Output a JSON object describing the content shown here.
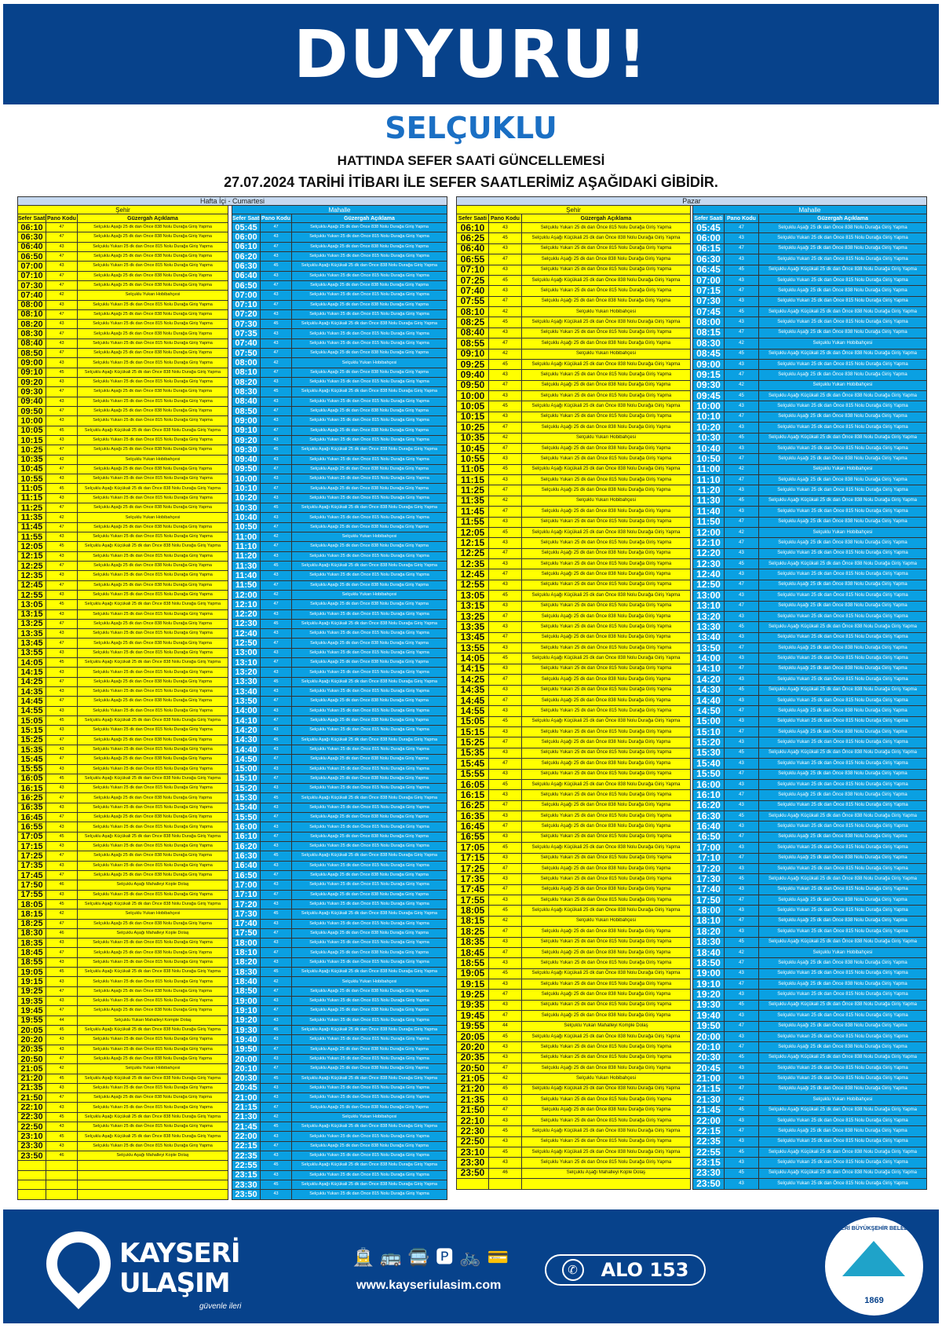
{
  "header": {
    "title": "DUYURU!",
    "line": "SELÇUKLU",
    "subtitle": "HATTINDA SEFER SAATİ GÜNCELLEMESİ",
    "notice": "27.07.2024 TARİHİ İTİBARI İLE SEFER SAATLERİMİZ AŞAĞIDAKİ GİBİDİR."
  },
  "colors": {
    "banner": "#07428b",
    "line_title": "#1a6fc4",
    "sehir": "#ffff00",
    "mahalle": "#0aa0e2",
    "band": "#c6d9f0"
  },
  "columns": {
    "time": "Sefer Saati",
    "code": "Pano Kodu",
    "desc": "Güzergah Açıklama"
  },
  "sections": {
    "sehir": "Şehir",
    "mahalle": "Mahalle"
  },
  "routes": {
    "42": "Selçuklu Yukarı Hobibahçesi",
    "43": "Selçuklu Yukarı 25 dk dan Önce 815 Nolu Durağa Giriş Yapma",
    "44": "Selçuklu Yukarı Mahalleyi Komple Dolaş",
    "45": "Selçuklu Aşağı Küçükali 25 dk dan Önce 838 Nolu Durağa Giriş Yapma",
    "46": "Selçuklu Aşağı  Mahalleyi Kople Dolaş",
    "47": "Selçuklu Aşağı 25 dk dan Önce 838 Nolu Durağa Giriş Yapma"
  },
  "weekday": {
    "title": "Hafta İçi - Cumartesi",
    "sehir": [
      [
        "06:10",
        "47"
      ],
      [
        "06:30",
        "47"
      ],
      [
        "06:40",
        "43"
      ],
      [
        "06:50",
        "47"
      ],
      [
        "07:00",
        "43"
      ],
      [
        "07:10",
        "47"
      ],
      [
        "07:30",
        "47"
      ],
      [
        "07:40",
        "42"
      ],
      [
        "08:00",
        "43"
      ],
      [
        "08:10",
        "47"
      ],
      [
        "08:20",
        "43"
      ],
      [
        "08:30",
        "47"
      ],
      [
        "08:40",
        "43"
      ],
      [
        "08:50",
        "47"
      ],
      [
        "09:00",
        "43"
      ],
      [
        "09:10",
        "45"
      ],
      [
        "09:20",
        "43"
      ],
      [
        "09:30",
        "47"
      ],
      [
        "09:40",
        "43"
      ],
      [
        "09:50",
        "47"
      ],
      [
        "10:00",
        "43"
      ],
      [
        "10:05",
        "45"
      ],
      [
        "10:15",
        "43"
      ],
      [
        "10:25",
        "47"
      ],
      [
        "10:35",
        "42"
      ],
      [
        "10:45",
        "47"
      ],
      [
        "10:55",
        "43"
      ],
      [
        "11:05",
        "45"
      ],
      [
        "11:15",
        "43"
      ],
      [
        "11:25",
        "47"
      ],
      [
        "11:35",
        "42"
      ],
      [
        "11:45",
        "47"
      ],
      [
        "11:55",
        "43"
      ],
      [
        "12:05",
        "45"
      ],
      [
        "12:15",
        "43"
      ],
      [
        "12:25",
        "47"
      ],
      [
        "12:35",
        "43"
      ],
      [
        "12:45",
        "47"
      ],
      [
        "12:55",
        "43"
      ],
      [
        "13:05",
        "45"
      ],
      [
        "13:15",
        "43"
      ],
      [
        "13:25",
        "47"
      ],
      [
        "13:35",
        "43"
      ],
      [
        "13:45",
        "47"
      ],
      [
        "13:55",
        "43"
      ],
      [
        "14:05",
        "45"
      ],
      [
        "14:15",
        "43"
      ],
      [
        "14:25",
        "47"
      ],
      [
        "14:35",
        "43"
      ],
      [
        "14:45",
        "47"
      ],
      [
        "14:55",
        "43"
      ],
      [
        "15:05",
        "45"
      ],
      [
        "15:15",
        "43"
      ],
      [
        "15:25",
        "47"
      ],
      [
        "15:35",
        "43"
      ],
      [
        "15:45",
        "47"
      ],
      [
        "15:55",
        "43"
      ],
      [
        "16:05",
        "45"
      ],
      [
        "16:15",
        "43"
      ],
      [
        "16:25",
        "47"
      ],
      [
        "16:35",
        "43"
      ],
      [
        "16:45",
        "47"
      ],
      [
        "16:55",
        "43"
      ],
      [
        "17:05",
        "45"
      ],
      [
        "17:15",
        "43"
      ],
      [
        "17:25",
        "47"
      ],
      [
        "17:35",
        "43"
      ],
      [
        "17:45",
        "47"
      ],
      [
        "17:50",
        "46"
      ],
      [
        "17:55",
        "43"
      ],
      [
        "18:05",
        "45"
      ],
      [
        "18:15",
        "42"
      ],
      [
        "18:25",
        "47"
      ],
      [
        "18:30",
        "46"
      ],
      [
        "18:35",
        "43"
      ],
      [
        "18:45",
        "47"
      ],
      [
        "18:55",
        "43"
      ],
      [
        "19:05",
        "45"
      ],
      [
        "19:15",
        "43"
      ],
      [
        "19:25",
        "47"
      ],
      [
        "19:35",
        "43"
      ],
      [
        "19:45",
        "47"
      ],
      [
        "19:55",
        "44"
      ],
      [
        "20:05",
        "45"
      ],
      [
        "20:20",
        "43"
      ],
      [
        "20:35",
        "43"
      ],
      [
        "20:50",
        "47"
      ],
      [
        "21:05",
        "42"
      ],
      [
        "21:20",
        "45"
      ],
      [
        "21:35",
        "43"
      ],
      [
        "21:50",
        "47"
      ],
      [
        "22:10",
        "43"
      ],
      [
        "22:30",
        "45"
      ],
      [
        "22:50",
        "43"
      ],
      [
        "23:10",
        "45"
      ],
      [
        "23:30",
        "43"
      ],
      [
        "23:50",
        "46"
      ]
    ],
    "mahalle": [
      [
        "05:45",
        "47"
      ],
      [
        "06:00",
        "43"
      ],
      [
        "06:10",
        "47"
      ],
      [
        "06:20",
        "43"
      ],
      [
        "06:30",
        "45"
      ],
      [
        "06:40",
        "43"
      ],
      [
        "06:50",
        "47"
      ],
      [
        "07:00",
        "43"
      ],
      [
        "07:10",
        "47"
      ],
      [
        "07:20",
        "43"
      ],
      [
        "07:30",
        "45"
      ],
      [
        "07:35",
        "43"
      ],
      [
        "07:40",
        "43"
      ],
      [
        "07:50",
        "47"
      ],
      [
        "08:00",
        "42"
      ],
      [
        "08:10",
        "47"
      ],
      [
        "08:20",
        "43"
      ],
      [
        "08:30",
        "45"
      ],
      [
        "08:40",
        "43"
      ],
      [
        "08:50",
        "47"
      ],
      [
        "09:00",
        "43"
      ],
      [
        "09:10",
        "47"
      ],
      [
        "09:20",
        "43"
      ],
      [
        "09:30",
        "45"
      ],
      [
        "09:40",
        "43"
      ],
      [
        "09:50",
        "47"
      ],
      [
        "10:00",
        "43"
      ],
      [
        "10:10",
        "47"
      ],
      [
        "10:20",
        "43"
      ],
      [
        "10:30",
        "45"
      ],
      [
        "10:40",
        "43"
      ],
      [
        "10:50",
        "47"
      ],
      [
        "11:00",
        "42"
      ],
      [
        "11:10",
        "47"
      ],
      [
        "11:20",
        "43"
      ],
      [
        "11:30",
        "45"
      ],
      [
        "11:40",
        "43"
      ],
      [
        "11:50",
        "47"
      ],
      [
        "12:00",
        "42"
      ],
      [
        "12:10",
        "47"
      ],
      [
        "12:20",
        "43"
      ],
      [
        "12:30",
        "45"
      ],
      [
        "12:40",
        "43"
      ],
      [
        "12:50",
        "47"
      ],
      [
        "13:00",
        "43"
      ],
      [
        "13:10",
        "47"
      ],
      [
        "13:20",
        "43"
      ],
      [
        "13:30",
        "45"
      ],
      [
        "13:40",
        "43"
      ],
      [
        "13:50",
        "47"
      ],
      [
        "14:00",
        "43"
      ],
      [
        "14:10",
        "47"
      ],
      [
        "14:20",
        "43"
      ],
      [
        "14:30",
        "45"
      ],
      [
        "14:40",
        "43"
      ],
      [
        "14:50",
        "47"
      ],
      [
        "15:00",
        "43"
      ],
      [
        "15:10",
        "47"
      ],
      [
        "15:20",
        "43"
      ],
      [
        "15:30",
        "45"
      ],
      [
        "15:40",
        "43"
      ],
      [
        "15:50",
        "47"
      ],
      [
        "16:00",
        "43"
      ],
      [
        "16:10",
        "47"
      ],
      [
        "16:20",
        "43"
      ],
      [
        "16:30",
        "45"
      ],
      [
        "16:40",
        "43"
      ],
      [
        "16:50",
        "47"
      ],
      [
        "17:00",
        "43"
      ],
      [
        "17:10",
        "47"
      ],
      [
        "17:20",
        "43"
      ],
      [
        "17:30",
        "45"
      ],
      [
        "17:40",
        "43"
      ],
      [
        "17:50",
        "47"
      ],
      [
        "18:00",
        "43"
      ],
      [
        "18:10",
        "47"
      ],
      [
        "18:20",
        "43"
      ],
      [
        "18:30",
        "45"
      ],
      [
        "18:40",
        "42"
      ],
      [
        "18:50",
        "47"
      ],
      [
        "19:00",
        "43"
      ],
      [
        "19:10",
        "47"
      ],
      [
        "19:20",
        "43"
      ],
      [
        "19:30",
        "45"
      ],
      [
        "19:40",
        "43"
      ],
      [
        "19:50",
        "47"
      ],
      [
        "20:00",
        "43"
      ],
      [
        "20:10",
        "47"
      ],
      [
        "20:30",
        "45"
      ],
      [
        "20:45",
        "43"
      ],
      [
        "21:00",
        "43"
      ],
      [
        "21:15",
        "47"
      ],
      [
        "21:30",
        "42"
      ],
      [
        "21:45",
        "45"
      ],
      [
        "22:00",
        "43"
      ],
      [
        "22:15",
        "47"
      ],
      [
        "22:35",
        "43"
      ],
      [
        "22:55",
        "45"
      ],
      [
        "23:15",
        "43"
      ],
      [
        "23:30",
        "45"
      ],
      [
        "23:50",
        "43"
      ]
    ]
  },
  "sunday": {
    "title": "Pazar",
    "sehir": [
      [
        "06:10",
        "43"
      ],
      [
        "06:25",
        "45"
      ],
      [
        "06:40",
        "43"
      ],
      [
        "06:55",
        "47"
      ],
      [
        "07:10",
        "43"
      ],
      [
        "07:25",
        "45"
      ],
      [
        "07:40",
        "43"
      ],
      [
        "07:55",
        "47"
      ],
      [
        "08:10",
        "42"
      ],
      [
        "08:25",
        "45"
      ],
      [
        "08:40",
        "43"
      ],
      [
        "08:55",
        "47"
      ],
      [
        "09:10",
        "42"
      ],
      [
        "09:25",
        "45"
      ],
      [
        "09:40",
        "43"
      ],
      [
        "09:50",
        "47"
      ],
      [
        "10:00",
        "43"
      ],
      [
        "10:05",
        "45"
      ],
      [
        "10:15",
        "43"
      ],
      [
        "10:25",
        "47"
      ],
      [
        "10:35",
        "42"
      ],
      [
        "10:45",
        "47"
      ],
      [
        "10:55",
        "43"
      ],
      [
        "11:05",
        "45"
      ],
      [
        "11:15",
        "43"
      ],
      [
        "11:25",
        "47"
      ],
      [
        "11:35",
        "42"
      ],
      [
        "11:45",
        "47"
      ],
      [
        "11:55",
        "43"
      ],
      [
        "12:05",
        "45"
      ],
      [
        "12:15",
        "43"
      ],
      [
        "12:25",
        "47"
      ],
      [
        "12:35",
        "43"
      ],
      [
        "12:45",
        "47"
      ],
      [
        "12:55",
        "43"
      ],
      [
        "13:05",
        "45"
      ],
      [
        "13:15",
        "43"
      ],
      [
        "13:25",
        "47"
      ],
      [
        "13:35",
        "43"
      ],
      [
        "13:45",
        "47"
      ],
      [
        "13:55",
        "43"
      ],
      [
        "14:05",
        "45"
      ],
      [
        "14:15",
        "43"
      ],
      [
        "14:25",
        "47"
      ],
      [
        "14:35",
        "43"
      ],
      [
        "14:45",
        "47"
      ],
      [
        "14:55",
        "43"
      ],
      [
        "15:05",
        "45"
      ],
      [
        "15:15",
        "43"
      ],
      [
        "15:25",
        "47"
      ],
      [
        "15:35",
        "43"
      ],
      [
        "15:45",
        "47"
      ],
      [
        "15:55",
        "43"
      ],
      [
        "16:05",
        "45"
      ],
      [
        "16:15",
        "43"
      ],
      [
        "16:25",
        "47"
      ],
      [
        "16:35",
        "43"
      ],
      [
        "16:45",
        "47"
      ],
      [
        "16:55",
        "43"
      ],
      [
        "17:05",
        "45"
      ],
      [
        "17:15",
        "43"
      ],
      [
        "17:25",
        "47"
      ],
      [
        "17:35",
        "43"
      ],
      [
        "17:45",
        "47"
      ],
      [
        "17:55",
        "43"
      ],
      [
        "18:05",
        "45"
      ],
      [
        "18:15",
        "42"
      ],
      [
        "18:25",
        "47"
      ],
      [
        "18:35",
        "43"
      ],
      [
        "18:45",
        "47"
      ],
      [
        "18:55",
        "43"
      ],
      [
        "19:05",
        "45"
      ],
      [
        "19:15",
        "43"
      ],
      [
        "19:25",
        "47"
      ],
      [
        "19:35",
        "43"
      ],
      [
        "19:45",
        "47"
      ],
      [
        "19:55",
        "44"
      ],
      [
        "20:05",
        "45"
      ],
      [
        "20:20",
        "43"
      ],
      [
        "20:35",
        "43"
      ],
      [
        "20:50",
        "47"
      ],
      [
        "21:05",
        "42"
      ],
      [
        "21:20",
        "45"
      ],
      [
        "21:35",
        "43"
      ],
      [
        "21:50",
        "47"
      ],
      [
        "22:10",
        "43"
      ],
      [
        "22:30",
        "45"
      ],
      [
        "22:50",
        "43"
      ],
      [
        "23:10",
        "45"
      ],
      [
        "23:30",
        "43"
      ],
      [
        "23:50",
        "46"
      ]
    ],
    "mahalle": [
      [
        "05:45",
        "47"
      ],
      [
        "06:00",
        "43"
      ],
      [
        "06:15",
        "47"
      ],
      [
        "06:30",
        "43"
      ],
      [
        "06:45",
        "45"
      ],
      [
        "07:00",
        "43"
      ],
      [
        "07:15",
        "47"
      ],
      [
        "07:30",
        "43"
      ],
      [
        "07:45",
        "45"
      ],
      [
        "08:00",
        "43"
      ],
      [
        "08:15",
        "47"
      ],
      [
        "08:30",
        "42"
      ],
      [
        "08:45",
        "45"
      ],
      [
        "09:00",
        "43"
      ],
      [
        "09:15",
        "47"
      ],
      [
        "09:30",
        "42"
      ],
      [
        "09:45",
        "45"
      ],
      [
        "10:00",
        "43"
      ],
      [
        "10:10",
        "47"
      ],
      [
        "10:20",
        "43"
      ],
      [
        "10:30",
        "45"
      ],
      [
        "10:40",
        "43"
      ],
      [
        "10:50",
        "47"
      ],
      [
        "11:00",
        "42"
      ],
      [
        "11:10",
        "47"
      ],
      [
        "11:20",
        "43"
      ],
      [
        "11:30",
        "45"
      ],
      [
        "11:40",
        "43"
      ],
      [
        "11:50",
        "47"
      ],
      [
        "12:00",
        "42"
      ],
      [
        "12:10",
        "47"
      ],
      [
        "12:20",
        "43"
      ],
      [
        "12:30",
        "45"
      ],
      [
        "12:40",
        "43"
      ],
      [
        "12:50",
        "47"
      ],
      [
        "13:00",
        "43"
      ],
      [
        "13:10",
        "47"
      ],
      [
        "13:20",
        "43"
      ],
      [
        "13:30",
        "45"
      ],
      [
        "13:40",
        "43"
      ],
      [
        "13:50",
        "47"
      ],
      [
        "14:00",
        "43"
      ],
      [
        "14:10",
        "47"
      ],
      [
        "14:20",
        "43"
      ],
      [
        "14:30",
        "45"
      ],
      [
        "14:40",
        "43"
      ],
      [
        "14:50",
        "47"
      ],
      [
        "15:00",
        "43"
      ],
      [
        "15:10",
        "47"
      ],
      [
        "15:20",
        "43"
      ],
      [
        "15:30",
        "45"
      ],
      [
        "15:40",
        "43"
      ],
      [
        "15:50",
        "47"
      ],
      [
        "16:00",
        "43"
      ],
      [
        "16:10",
        "47"
      ],
      [
        "16:20",
        "43"
      ],
      [
        "16:30",
        "45"
      ],
      [
        "16:40",
        "43"
      ],
      [
        "16:50",
        "47"
      ],
      [
        "17:00",
        "43"
      ],
      [
        "17:10",
        "47"
      ],
      [
        "17:20",
        "43"
      ],
      [
        "17:30",
        "45"
      ],
      [
        "17:40",
        "43"
      ],
      [
        "17:50",
        "47"
      ],
      [
        "18:00",
        "43"
      ],
      [
        "18:10",
        "47"
      ],
      [
        "18:20",
        "43"
      ],
      [
        "18:30",
        "45"
      ],
      [
        "18:40",
        "42"
      ],
      [
        "18:50",
        "47"
      ],
      [
        "19:00",
        "43"
      ],
      [
        "19:10",
        "47"
      ],
      [
        "19:20",
        "43"
      ],
      [
        "19:30",
        "45"
      ],
      [
        "19:40",
        "43"
      ],
      [
        "19:50",
        "47"
      ],
      [
        "20:00",
        "43"
      ],
      [
        "20:10",
        "47"
      ],
      [
        "20:30",
        "45"
      ],
      [
        "20:45",
        "43"
      ],
      [
        "21:00",
        "43"
      ],
      [
        "21:15",
        "47"
      ],
      [
        "21:30",
        "42"
      ],
      [
        "21:45",
        "45"
      ],
      [
        "22:00",
        "43"
      ],
      [
        "22:15",
        "47"
      ],
      [
        "22:35",
        "43"
      ],
      [
        "22:55",
        "45"
      ],
      [
        "23:15",
        "43"
      ],
      [
        "23:30",
        "45"
      ],
      [
        "23:50",
        "43"
      ]
    ]
  },
  "footer": {
    "brand_line1": "KAYSERİ",
    "brand_line2": "ULAŞIM",
    "slogan": "güvenle ileri",
    "website": "www.kayseriulasim.com",
    "hotline": "ALO 153",
    "transport_icons": [
      "tram-icon",
      "bus-icon",
      "metrobus-icon",
      "parking-icon",
      "bicycle-icon",
      "card-icon"
    ],
    "seal_text": "KAYSERİ BÜYÜKŞEHİR BELEDİYESİ",
    "seal_year": "1869"
  }
}
